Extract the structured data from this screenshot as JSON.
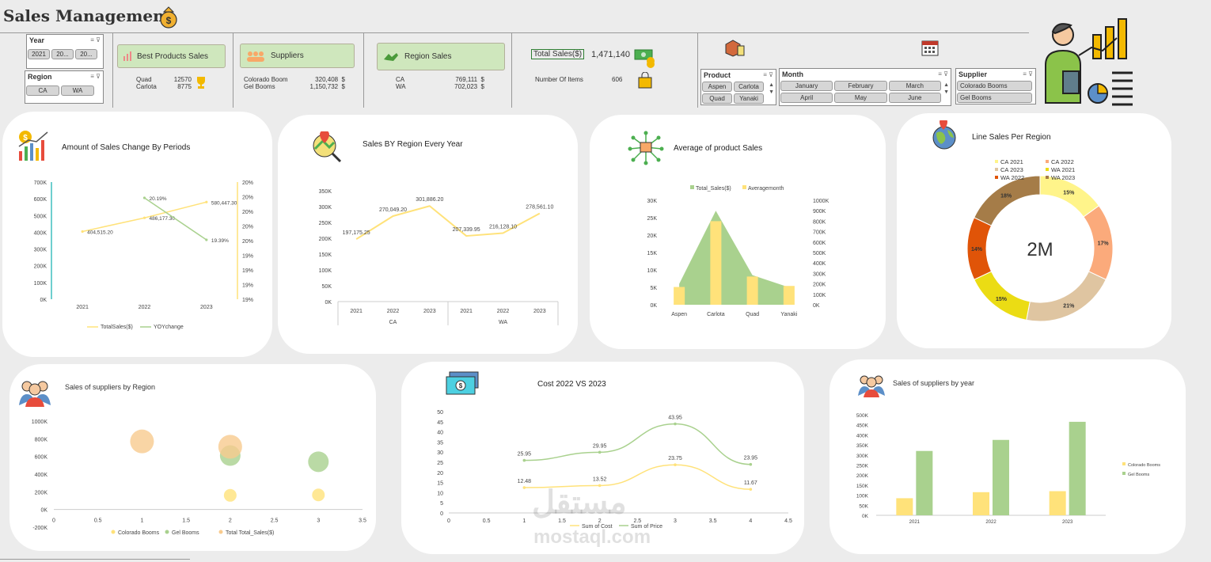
{
  "header": {
    "title": "Sales Management"
  },
  "slicers": {
    "year": {
      "label": "Year",
      "items": [
        "2021",
        "20...",
        "20..."
      ]
    },
    "region": {
      "label": "Region",
      "items": [
        "CA",
        "WA"
      ]
    },
    "product": {
      "label": "Product",
      "items": [
        "Aspen",
        "Carlota",
        "Quad",
        "Yanaki"
      ]
    },
    "month": {
      "label": "Month",
      "items": [
        "January",
        "February",
        "March",
        "April",
        "May",
        "June"
      ]
    },
    "supplier": {
      "label": "Supplier",
      "items": [
        "Colorado Booms",
        "Gel Booms"
      ]
    }
  },
  "kpis": {
    "best_products": {
      "label": "Best Products Sales",
      "rows": [
        {
          "name": "Quad",
          "value": "12570"
        },
        {
          "name": "Carlota",
          "value": "8775"
        }
      ]
    },
    "suppliers": {
      "label": "Suppliers",
      "rows": [
        {
          "name": "Colorado Boom",
          "value": "320,408",
          "unit": "$"
        },
        {
          "name": "Gel Booms",
          "value": "1,150,732",
          "unit": "$"
        }
      ]
    },
    "region_sales": {
      "label": "Region Sales",
      "rows": [
        {
          "name": "CA",
          "value": "769,111",
          "unit": "$"
        },
        {
          "name": "WA",
          "value": "702,023",
          "unit": "$"
        }
      ]
    },
    "total_sales": {
      "label": "Total Sales($)",
      "value": "1,471,140"
    },
    "items": {
      "label": "Number Of Items",
      "value": "606"
    }
  },
  "cards": {
    "periods": {
      "title": "Amount of  Sales Change  By Periods"
    },
    "region_year": {
      "title": "Sales BY Region Every Year"
    },
    "avg_product": {
      "title": "Average of   product Sales"
    },
    "line_region": {
      "title": "Line Sales Per Region"
    },
    "suppliers_region": {
      "title": "Sales of suppliers by Region"
    },
    "cost": {
      "title": "Cost 2022 VS 2023"
    },
    "suppliers_year": {
      "title": "Sales of suppliers by year"
    }
  },
  "watermark": {
    "arabic": "مستقل",
    "latin": "mostaql.com"
  },
  "colors": {
    "yellow": "#ffe27a",
    "green": "#a9d18e",
    "orange": "#f8cb8e"
  },
  "chart_data": [
    {
      "id": "periods",
      "type": "line",
      "categories": [
        "2021",
        "2022",
        "2023"
      ],
      "series": [
        {
          "name": "TotalSales($)",
          "values": [
            404515.2,
            486177.3,
            580447.3
          ],
          "labels": [
            "404,515.20",
            "486,177.30",
            "580,447.30"
          ]
        },
        {
          "name": "YOYchange",
          "values": [
            null,
            20.19,
            19.39
          ],
          "labels": [
            "",
            "20.19%",
            "19.39%"
          ],
          "axis": "secondary"
        }
      ],
      "y_ticks": [
        "0K",
        "100K",
        "200K",
        "300K",
        "400K",
        "500K",
        "600K",
        "700K"
      ],
      "y2_ticks": [
        "19%",
        "19%",
        "19%",
        "19%",
        "20%",
        "20%",
        "20%",
        "20%",
        "20%"
      ],
      "ylim": [
        0,
        700000
      ]
    },
    {
      "id": "region_year",
      "type": "line",
      "categories": [
        "2021",
        "2022",
        "2023",
        "2021",
        "2022",
        "2023"
      ],
      "groups": [
        "CA",
        "WA"
      ],
      "values": [
        197175.25,
        270049.2,
        301886.2,
        207339.95,
        216128.1,
        278561.1
      ],
      "labels": [
        "197,175.25",
        "270,049.20",
        "301,886.20",
        "207,339.95",
        "216,128.10",
        "278,561.10"
      ],
      "y_ticks": [
        "0K",
        "50K",
        "100K",
        "150K",
        "200K",
        "250K",
        "300K",
        "350K"
      ],
      "ylim": [
        0,
        350000
      ]
    },
    {
      "id": "avg_product",
      "type": "area",
      "categories": [
        "Aspen",
        "Carlota",
        "Quad",
        "Yanaki"
      ],
      "series": [
        {
          "name": "Total_Sales($)",
          "values": [
            6000,
            27000,
            8500,
            5000
          ]
        },
        {
          "name": "Averagemonth",
          "values": [
            170000,
            800000,
            270000,
            180000
          ],
          "axis": "secondary"
        }
      ],
      "y_ticks": [
        "0K",
        "5K",
        "10K",
        "15K",
        "20K",
        "25K",
        "30K"
      ],
      "y2_ticks": [
        "0K",
        "100K",
        "200K",
        "300K",
        "400K",
        "500K",
        "600K",
        "700K",
        "800K",
        "900K",
        "1000K"
      ],
      "ylim": [
        0,
        30000
      ],
      "y2lim": [
        0,
        1000000
      ]
    },
    {
      "id": "line_region",
      "type": "pie",
      "center_label": "2M",
      "legend": [
        "CA 2021",
        "CA 2022",
        "CA 2023",
        "WA 2021",
        "WA 2022",
        "WA 2023"
      ],
      "values": [
        15,
        17,
        21,
        15,
        14,
        18
      ],
      "labels": [
        "15%",
        "17%",
        "21%",
        "15%",
        "14%",
        "18%"
      ],
      "colors": [
        "#fff48a",
        "#fbaa7b",
        "#dfc5a1",
        "#ebdc14",
        "#e05408",
        "#a57c48"
      ]
    },
    {
      "id": "suppliers_region",
      "type": "scatter",
      "x_ticks": [
        "0",
        "0.5",
        "1",
        "1.5",
        "2",
        "2.5",
        "3",
        "3.5"
      ],
      "y_ticks": [
        "-200K",
        "0K",
        "200K",
        "400K",
        "600K",
        "800K",
        "1000K"
      ],
      "xlim": [
        0,
        3.5
      ],
      "ylim": [
        -200000,
        1000000
      ],
      "legend": [
        "Colorado Booms",
        "Gel Booms",
        "Total Total_Sales($)"
      ],
      "series": [
        {
          "name": "Colorado Booms",
          "points": [
            {
              "x": 2,
              "y": 160000
            },
            {
              "x": 3,
              "y": 165000
            }
          ]
        },
        {
          "name": "Gel Booms",
          "points": [
            {
              "x": 2,
              "y": 610000
            },
            {
              "x": 3,
              "y": 540000
            }
          ]
        },
        {
          "name": "Total Total_Sales($)",
          "points": [
            {
              "x": 1,
              "y": 770000
            },
            {
              "x": 2,
              "y": 710000
            }
          ]
        }
      ]
    },
    {
      "id": "cost",
      "type": "line",
      "x": [
        1,
        2,
        3,
        4
      ],
      "x_ticks": [
        "0",
        "0.5",
        "1",
        "1.5",
        "2",
        "2.5",
        "3",
        "3.5",
        "4",
        "4.5"
      ],
      "y_ticks": [
        "0",
        "5",
        "10",
        "15",
        "20",
        "25",
        "30",
        "35",
        "40",
        "45",
        "50"
      ],
      "xlim": [
        0,
        4.5
      ],
      "ylim": [
        0,
        50
      ],
      "series": [
        {
          "name": "Sum of Cost",
          "values": [
            12.48,
            13.52,
            23.75,
            11.67
          ],
          "labels": [
            "12.48",
            "13.52",
            "23.75",
            "11.67"
          ]
        },
        {
          "name": "Sum of Price",
          "values": [
            25.95,
            29.95,
            43.95,
            23.95
          ],
          "labels": [
            "25.95",
            "29.95",
            "43.95",
            "23.95"
          ]
        }
      ]
    },
    {
      "id": "suppliers_year",
      "type": "bar",
      "categories": [
        "2021",
        "2022",
        "2023"
      ],
      "series": [
        {
          "name": "Colorado Booms",
          "values": [
            85000,
            115000,
            120000
          ]
        },
        {
          "name": "Gel Booms",
          "values": [
            320000,
            375000,
            465000
          ]
        }
      ],
      "y_ticks": [
        "0K",
        "50K",
        "100K",
        "150K",
        "200K",
        "250K",
        "300K",
        "350K",
        "400K",
        "450K",
        "500K"
      ],
      "ylim": [
        0,
        500000
      ]
    }
  ]
}
